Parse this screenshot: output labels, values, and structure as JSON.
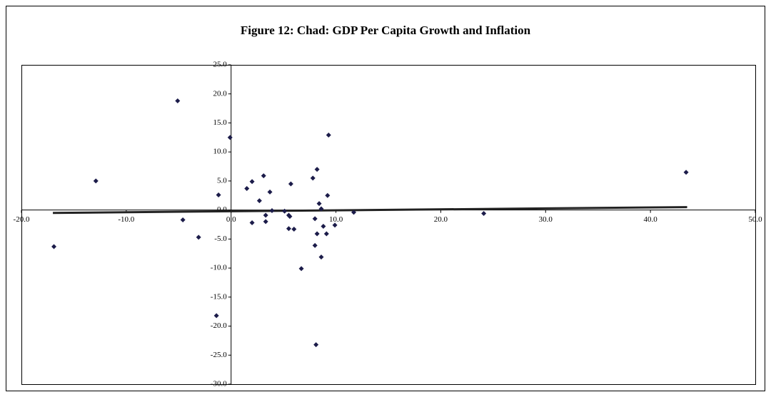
{
  "chart_data": {
    "type": "scatter",
    "title": "Figure 12: Chad: GDP Per Capita Growth and Inflation",
    "series": [
      {
        "color": "#1c1c4a",
        "x": [
          -16.9,
          -12.9,
          -5.1,
          -4.6,
          -3.1,
          -1.2,
          -1.4,
          -0.1,
          1.5,
          2.0,
          2.0,
          2.7,
          3.1,
          3.3,
          3.3,
          3.7,
          3.9,
          5.1,
          5.5,
          5.6,
          5.5,
          5.7,
          6.0,
          6.7,
          7.8,
          8.2,
          8.0,
          8.0,
          8.2,
          8.1,
          8.4,
          8.6,
          8.6,
          8.8,
          9.1,
          9.2,
          9.3,
          9.9,
          11.7,
          24.1,
          43.4
        ],
        "values": [
          -6.3,
          5.0,
          18.8,
          -1.7,
          -4.7,
          2.6,
          -18.2,
          12.5,
          3.7,
          4.9,
          -2.2,
          1.6,
          5.9,
          -0.9,
          -2.0,
          3.1,
          -0.1,
          -0.2,
          -0.9,
          -1.1,
          -3.2,
          4.5,
          -3.3,
          -10.1,
          5.5,
          7.0,
          -1.5,
          -6.1,
          -4.1,
          -23.2,
          1.1,
          0.2,
          -8.1,
          -2.8,
          -4.1,
          2.5,
          12.9,
          -2.6,
          -0.4,
          -0.6,
          6.5
        ]
      }
    ],
    "trendline": {
      "color": "#222222",
      "x": [
        -17.0,
        43.5
      ],
      "values": [
        -0.5,
        0.5
      ]
    },
    "xlim": [
      -20,
      50
    ],
    "xticks": [
      {
        "value": -20,
        "label": "-20.0"
      },
      {
        "value": -10,
        "label": "-10.0"
      },
      {
        "value": 0,
        "label": "0.0"
      },
      {
        "value": 10,
        "label": "10.0"
      },
      {
        "value": 20,
        "label": "20.0"
      },
      {
        "value": 30,
        "label": "30.0"
      },
      {
        "value": 40,
        "label": "40.0"
      },
      {
        "value": 50,
        "label": "50.0"
      }
    ],
    "ylim": [
      -30,
      25
    ],
    "yticks": [
      {
        "value": -30,
        "label": "-30.0"
      },
      {
        "value": -25,
        "label": "-25.0"
      },
      {
        "value": -20,
        "label": "-20.0"
      },
      {
        "value": -15,
        "label": "-15.0"
      },
      {
        "value": -10,
        "label": "-10.0"
      },
      {
        "value": -5,
        "label": "-5.0"
      },
      {
        "value": 0,
        "label": "0.0"
      },
      {
        "value": 5,
        "label": "5.0"
      },
      {
        "value": 10,
        "label": "10.0"
      },
      {
        "value": 15,
        "label": "15.0"
      },
      {
        "value": 20,
        "label": "20.0"
      },
      {
        "value": 25,
        "label": "25.0"
      }
    ]
  }
}
